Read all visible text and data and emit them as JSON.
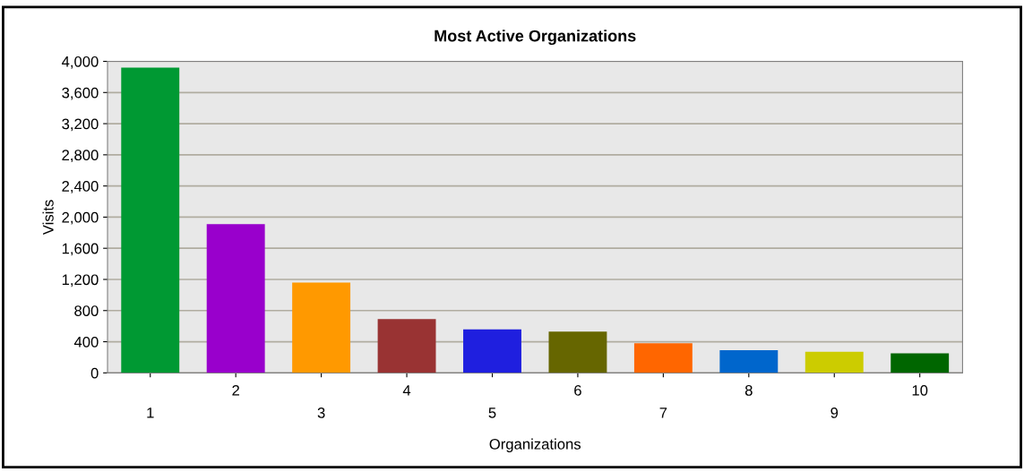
{
  "chart_data": {
    "type": "bar",
    "title": "Most Active Organizations",
    "xlabel": "Organizations",
    "ylabel": "Visits",
    "categories": [
      "1",
      "2",
      "3",
      "4",
      "5",
      "6",
      "7",
      "8",
      "9",
      "10"
    ],
    "values": [
      3920,
      1910,
      1160,
      690,
      560,
      530,
      380,
      290,
      270,
      250
    ],
    "colors": [
      "#009933",
      "#9900cc",
      "#ff9900",
      "#993333",
      "#1f1fdf",
      "#666600",
      "#ff6600",
      "#0066cc",
      "#cccc00",
      "#006600"
    ],
    "ylim": [
      0,
      4000
    ],
    "yticks": [
      {
        "value": 0,
        "label": "0"
      },
      {
        "value": 400,
        "label": "400"
      },
      {
        "value": 800,
        "label": "800"
      },
      {
        "value": 1200,
        "label": "1,200"
      },
      {
        "value": 1600,
        "label": "1,600"
      },
      {
        "value": 2000,
        "label": "2,000"
      },
      {
        "value": 2400,
        "label": "2,400"
      },
      {
        "value": 2800,
        "label": "2,800"
      },
      {
        "value": 3200,
        "label": "3,200"
      },
      {
        "value": 3600,
        "label": "3,600"
      },
      {
        "value": 4000,
        "label": "4,000"
      }
    ],
    "grid": "y"
  }
}
